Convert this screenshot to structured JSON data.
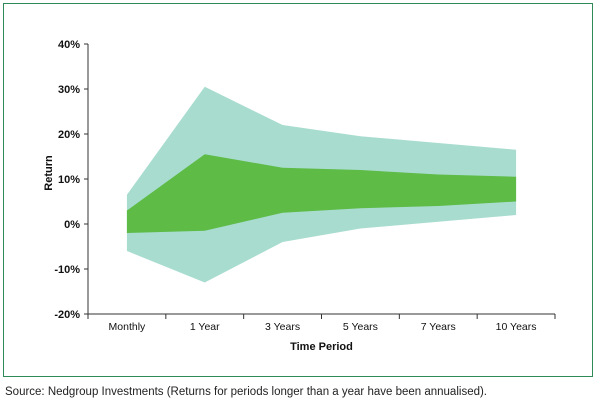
{
  "chart_data": {
    "type": "area",
    "categories": [
      "Monthly",
      "1 Year",
      "3 Years",
      "5 Years",
      "7 Years",
      "10 Years"
    ],
    "xlabel": "Time Period",
    "ylabel": "Return",
    "ylim": [
      -20,
      40
    ],
    "yticks": [
      -20,
      -10,
      0,
      10,
      20,
      30,
      40
    ],
    "ytick_labels": [
      "-20%",
      "-10%",
      "0%",
      "10%",
      "20%",
      "30%",
      "40%"
    ],
    "grid": false,
    "series": [
      {
        "role": "outer-band",
        "color": "#a8dccf",
        "upper": [
          6.5,
          30.5,
          22.0,
          19.5,
          18.0,
          16.5
        ],
        "lower": [
          -6.0,
          -13.0,
          -4.0,
          -1.0,
          0.5,
          2.0
        ]
      },
      {
        "role": "inner-band",
        "color": "#5dbb46",
        "upper": [
          3.0,
          15.5,
          12.5,
          12.0,
          11.0,
          10.5
        ],
        "lower": [
          -2.0,
          -1.5,
          2.5,
          3.5,
          4.0,
          5.0
        ]
      }
    ]
  },
  "footer": {
    "source": "Source: Nedgroup Investments (Returns for periods longer than a year have been annualised)."
  },
  "colors": {
    "frame": "#2e8b57",
    "axis": "#333333"
  }
}
